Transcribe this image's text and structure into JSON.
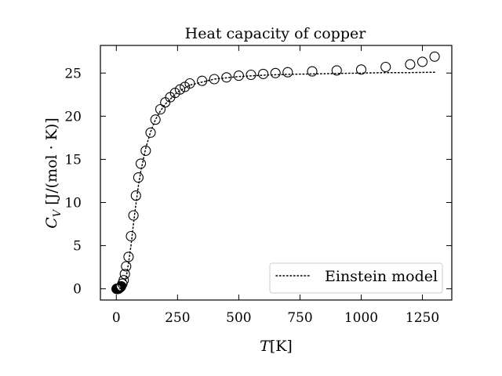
{
  "chart_data": {
    "type": "scatter",
    "title": "Heat capacity of copper",
    "xlabel": "T[K]",
    "ylabel": "C_V [J/(mol · K)]",
    "xlim": [
      -65,
      1370
    ],
    "ylim": [
      -1.3,
      28.2
    ],
    "xticks": [
      0,
      250,
      500,
      750,
      1000,
      1250
    ],
    "yticks": [
      0,
      5,
      10,
      15,
      20,
      25
    ],
    "grid": false,
    "legend_position": "lower-right",
    "series": [
      {
        "name": "",
        "kind": "markers",
        "marker": "open-circle",
        "x": [
          1,
          2,
          3,
          4,
          5,
          6,
          8,
          10,
          12,
          14,
          16,
          18,
          20,
          25,
          30,
          35,
          40,
          50,
          60,
          70,
          80,
          90,
          100,
          120,
          140,
          160,
          180,
          200,
          220,
          240,
          260,
          280,
          300,
          350,
          400,
          450,
          500,
          550,
          600,
          650,
          700,
          800,
          900,
          1000,
          1100,
          1200,
          1250,
          1300
        ],
        "y": [
          0.0,
          0.0,
          0.0,
          0.0,
          0.0,
          0.0,
          0.0,
          0.05,
          0.08,
          0.12,
          0.17,
          0.22,
          0.3,
          0.6,
          1.0,
          1.7,
          2.6,
          3.7,
          6.1,
          8.5,
          10.8,
          12.9,
          14.5,
          16.0,
          18.1,
          19.6,
          20.8,
          21.6,
          22.2,
          22.7,
          23.1,
          23.4,
          23.8,
          24.1,
          24.3,
          24.5,
          24.7,
          24.8,
          24.9,
          25.0,
          25.1,
          25.2,
          25.3,
          25.4,
          25.7,
          26.0,
          26.3,
          26.9
        ],
        "color": "#000000"
      },
      {
        "name": "Einstein model",
        "kind": "dotted-line",
        "x": [
          0,
          10,
          20,
          30,
          40,
          50,
          60,
          70,
          80,
          90,
          100,
          120,
          140,
          160,
          180,
          200,
          250,
          300,
          400,
          500,
          600,
          700,
          800,
          900,
          1000,
          1100,
          1200,
          1300
        ],
        "y": [
          0.0,
          0.0,
          0.02,
          0.3,
          1.3,
          3.0,
          5.0,
          7.5,
          9.8,
          11.9,
          13.6,
          16.3,
          18.2,
          19.6,
          20.6,
          21.4,
          22.8,
          23.6,
          24.3,
          24.6,
          24.75,
          24.85,
          24.9,
          24.95,
          25.0,
          25.05,
          25.05,
          25.1
        ],
        "color": "#000000"
      }
    ]
  }
}
